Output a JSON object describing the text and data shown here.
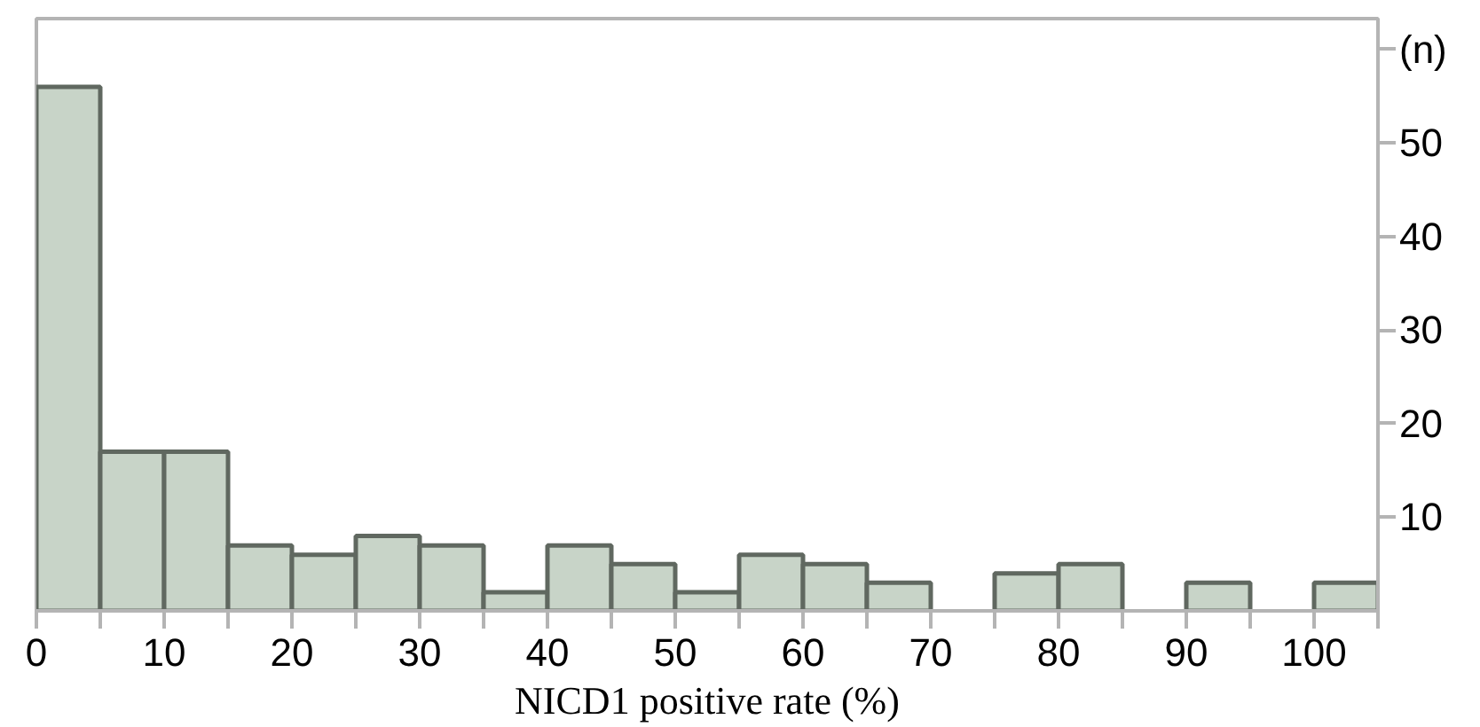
{
  "chart_data": {
    "type": "histogram",
    "xlabel": "NICD1 positive rate (%)",
    "bins": [
      0,
      5,
      10,
      15,
      20,
      25,
      30,
      35,
      40,
      45,
      50,
      55,
      60,
      65,
      70,
      75,
      80,
      85,
      90,
      95,
      100,
      105
    ],
    "values": [
      56,
      17,
      17,
      7,
      6,
      8,
      7,
      2,
      7,
      5,
      2,
      6,
      5,
      3,
      0,
      4,
      5,
      0,
      3,
      0,
      3
    ],
    "color": "#c8d4c8",
    "xlim": [
      0,
      105
    ],
    "xticks": [
      0,
      {
        "value": 5,
        "label": null
      },
      10,
      {
        "value": 15,
        "label": null
      },
      20,
      {
        "value": 25,
        "label": null
      },
      30,
      {
        "value": 35,
        "label": null
      },
      40,
      {
        "value": 45,
        "label": null
      },
      50,
      {
        "value": 55,
        "label": null
      },
      60,
      {
        "value": 65,
        "label": null
      },
      70,
      {
        "value": 75,
        "label": null
      },
      80,
      {
        "value": 85,
        "label": null
      },
      90,
      {
        "value": 95,
        "label": null
      },
      100,
      {
        "value": 105,
        "label": null
      }
    ],
    "ylim": [
      0,
      63.3
    ],
    "yticks": [
      10,
      20,
      30,
      40,
      50,
      {
        "value": 60,
        "label": "(n)"
      }
    ],
    "grid": false
  }
}
